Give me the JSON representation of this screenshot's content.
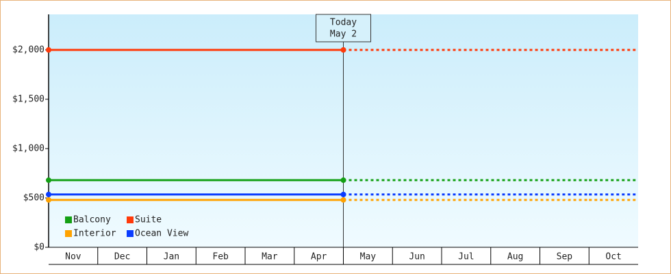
{
  "chart_data": {
    "type": "line",
    "categories": [
      "Nov",
      "Dec",
      "Jan",
      "Feb",
      "Mar",
      "Apr",
      "May",
      "Jun",
      "Jul",
      "Aug",
      "Sep",
      "Oct"
    ],
    "series": [
      {
        "name": "Balcony",
        "color": "#14a014",
        "values": [
          680,
          680,
          680,
          680,
          680,
          680,
          680,
          680,
          680,
          680,
          680,
          680
        ]
      },
      {
        "name": "Suite",
        "color": "#ff3a0a",
        "values": [
          2000,
          2000,
          2000,
          2000,
          2000,
          2000,
          2000,
          2000,
          2000,
          2000,
          2000,
          2000
        ]
      },
      {
        "name": "Interior",
        "color": "#ffa200",
        "values": [
          480,
          480,
          480,
          480,
          480,
          480,
          480,
          480,
          480,
          480,
          480,
          480
        ]
      },
      {
        "name": "Ocean View",
        "color": "#0a3cff",
        "values": [
          535,
          535,
          535,
          535,
          535,
          535,
          535,
          535,
          535,
          535,
          535,
          535
        ]
      }
    ],
    "today_index": 6,
    "annotation": {
      "title": "Today",
      "date": "May 2"
    },
    "ylim": [
      0,
      2360
    ],
    "yticks": [
      {
        "value": 0,
        "label": "$0"
      },
      {
        "value": 500,
        "label": "$500"
      },
      {
        "value": 1000,
        "label": "$1,000"
      },
      {
        "value": 1500,
        "label": "$1,500"
      },
      {
        "value": 2000,
        "label": "$2,000"
      }
    ],
    "legend": "bottom-left"
  }
}
